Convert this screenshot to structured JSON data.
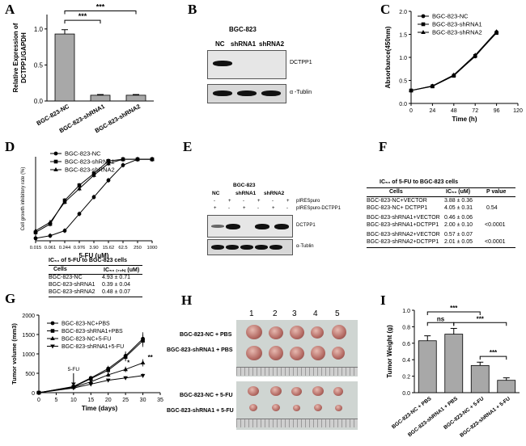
{
  "panels": {
    "A": "A",
    "B": "B",
    "C": "C",
    "D": "D",
    "E": "E",
    "F": "F",
    "G": "G",
    "H": "H",
    "I": "I"
  },
  "chart_data": [
    {
      "id": "A",
      "type": "bar",
      "ylabel": "Relative Expression of\nDCTPP1/GAPDH",
      "ylim": [
        0,
        1.2
      ],
      "yticks": [
        "0.0",
        "0.5",
        "1.0"
      ],
      "categories": [
        "BGC-823-NC",
        "BGC-823-shRNA1",
        "BGC-823-shRNA2"
      ],
      "values": [
        0.93,
        0.08,
        0.08
      ],
      "errors": [
        0.06,
        0.01,
        0.01
      ],
      "significance": [
        "***",
        "***"
      ]
    },
    {
      "id": "C",
      "type": "line",
      "xlabel": "Time (h)",
      "ylabel": "Absorbance(450nm)",
      "xlim": [
        0,
        120
      ],
      "ylim": [
        0,
        2
      ],
      "xticks": [
        "0",
        "24",
        "48",
        "72",
        "96",
        "120"
      ],
      "yticks": [
        "0.0",
        "0.5",
        "1.0",
        "1.5",
        "2.0"
      ],
      "x": [
        0,
        24,
        48,
        72,
        96
      ],
      "series": [
        {
          "name": "BGC-823-NC",
          "values": [
            0.28,
            0.38,
            0.61,
            1.02,
            1.55
          ]
        },
        {
          "name": "BGC-823-shRNA1",
          "values": [
            0.28,
            0.37,
            0.6,
            1.03,
            1.53
          ]
        },
        {
          "name": "BGC-823-shRNA2",
          "values": [
            0.28,
            0.38,
            0.62,
            1.05,
            1.56
          ]
        }
      ]
    },
    {
      "id": "D",
      "type": "line",
      "xlabel": "5-FU (uM)",
      "ylabel": "Cell growth inhibitory rate (%)",
      "xticks": [
        "0.015",
        "0.061",
        "0.244",
        "0.976",
        "3.90",
        "15.62",
        "62.5",
        "250",
        "1000"
      ],
      "x": [
        0.015,
        0.061,
        0.244,
        0.976,
        3.9,
        15.62,
        62.5,
        250,
        1000
      ],
      "ylim": [
        0,
        100
      ],
      "series": [
        {
          "name": "BGC-823-NC",
          "values": [
            3,
            6,
            12,
            32,
            52,
            72,
            90,
            97,
            97
          ]
        },
        {
          "name": "BGC-823-shRNA1",
          "values": [
            10,
            20,
            48,
            66,
            80,
            95,
            97,
            97,
            97
          ]
        },
        {
          "name": "BGC-823-shRNA2",
          "values": [
            12,
            22,
            46,
            62,
            78,
            92,
            97,
            97,
            97
          ]
        }
      ]
    },
    {
      "id": "G",
      "type": "line",
      "xlabel": "Time (days)",
      "ylabel": "Tumor volume (mm3)",
      "xlim": [
        0,
        35
      ],
      "ylim": [
        0,
        2000
      ],
      "xticks": [
        "0",
        "5",
        "10",
        "15",
        "20",
        "25",
        "30",
        "35"
      ],
      "yticks": [
        "0",
        "500",
        "1000",
        "1500",
        "2000"
      ],
      "x": [
        0,
        10,
        15,
        20,
        25,
        30
      ],
      "series": [
        {
          "name": "BGC-823-NC+PBS",
          "values": [
            0,
            160,
            380,
            620,
            950,
            1390
          ]
        },
        {
          "name": "BGC-823-shRNA1+PBS",
          "values": [
            0,
            150,
            360,
            580,
            920,
            1340
          ]
        },
        {
          "name": "BGC-823-NC+5-FU",
          "values": [
            0,
            140,
            280,
            460,
            600,
            770
          ]
        },
        {
          "name": "BGC-823-shRNA1+5-FU",
          "values": [
            0,
            120,
            220,
            320,
            380,
            440
          ]
        }
      ],
      "annotations": [
        "5-FU",
        "**",
        "*"
      ]
    },
    {
      "id": "I",
      "type": "bar",
      "ylabel": "Tumor Weight (g)",
      "ylim": [
        0,
        1.0
      ],
      "yticks": [
        "0.0",
        "0.2",
        "0.4",
        "0.6",
        "0.8",
        "1.0"
      ],
      "categories": [
        "BGC-823-NC + PBS",
        "BGC-823-shRNA1 + PBS",
        "BGC-823-NC + 5-FU",
        "BGC-823-shRNA1 + 5-FU"
      ],
      "values": [
        0.63,
        0.71,
        0.33,
        0.15
      ],
      "errors": [
        0.06,
        0.07,
        0.04,
        0.03
      ],
      "significance": [
        "***",
        "ns",
        "***",
        "***"
      ]
    }
  ],
  "blotB": {
    "title": "BGC-823",
    "lanes": [
      "NC",
      "shRNA1",
      "shRNA2"
    ],
    "labels": [
      "DCTPP1",
      "α -Tublin"
    ]
  },
  "blotE": {
    "title": "BGC-823",
    "lanes": [
      "NC",
      "shRNA1",
      "shRNA2"
    ],
    "rows": [
      "pIRESpuro",
      "pIRESpuro-DCTPP1"
    ],
    "signs": [
      "-",
      "+",
      "-",
      "+",
      "-",
      "+",
      "+",
      "-",
      "+",
      "-",
      "+",
      "-"
    ],
    "labels": [
      "DCTPP1",
      "α-Tublin"
    ]
  },
  "tableD": {
    "title": "IC₅₀ of 5-FU to BGC-823 cells",
    "col1": "Cells",
    "col2": "IC₅₀ ₍₇₂ₕ₎ (uM)",
    "rows": [
      [
        "BGC-823-NC",
        "4.93  ±  0.71"
      ],
      [
        "BGC-823-shRNA1",
        "0.39  ±  0.04"
      ],
      [
        "BGC-823-shRNA2",
        "0.48  ±  0.07"
      ]
    ]
  },
  "tableF": {
    "title": "IC₅₀ of 5-FU to BGC-823 cells",
    "col1": "Cells",
    "col2": "IC₅₀ (uM)",
    "col3": "P value",
    "rows": [
      [
        "BGC-823-NC+VECTOR",
        "3.88  ±  0.36",
        ""
      ],
      [
        "BGC-823-NC+ DCTPP1",
        "4.05  ±  0.31",
        "0.54"
      ],
      [
        "BGC-823-shRNA1+VECTOR",
        "0.46  ±  0.06",
        ""
      ],
      [
        "BGC-823-shRNA1+DCTPP1",
        "2.00  ±  0.10",
        "<0.0001"
      ],
      [
        "BGC-823-shRNA2+VECTOR",
        "0.57  ±  0.07",
        ""
      ],
      [
        "BGC-823-shRNA2+DCTPP1",
        "2.01  ±  0.05",
        "<0.0001"
      ]
    ]
  },
  "panelH": {
    "numbers": [
      "1",
      "2",
      "3",
      "4",
      "5"
    ],
    "labels": [
      "BGC-823-NC + PBS",
      "BGC-823-shRNA1 + PBS",
      "BGC-823-NC + 5-FU",
      "BGC-823-shRNA1 + 5-FU"
    ]
  }
}
